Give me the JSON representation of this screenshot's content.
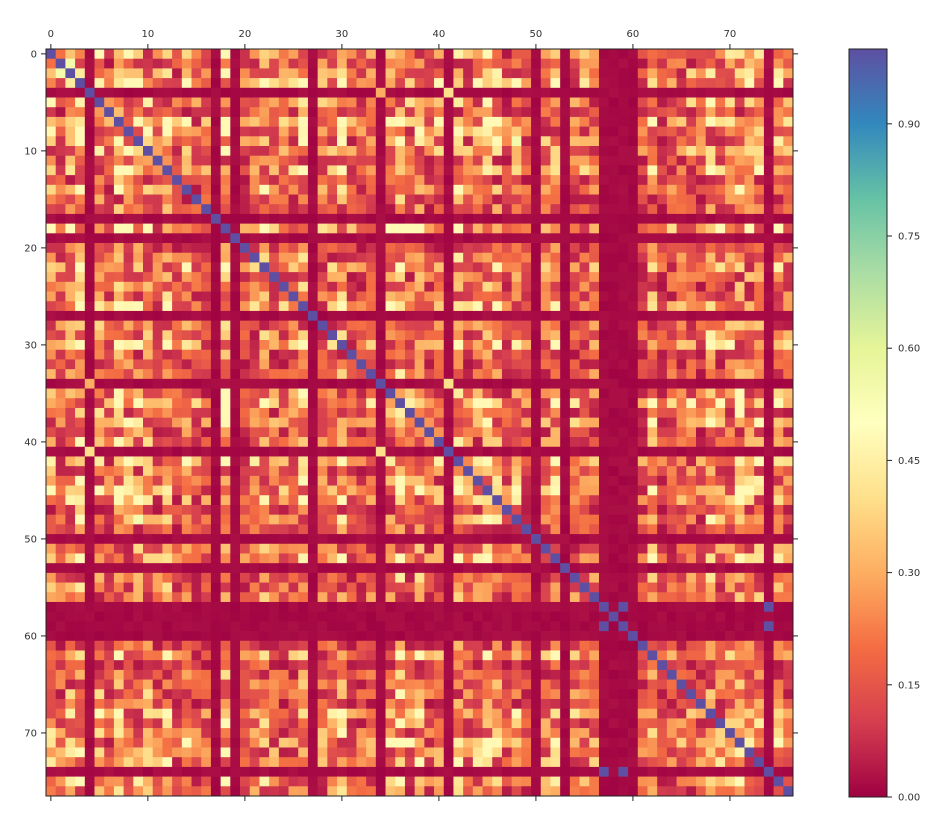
{
  "chart_data": {
    "type": "heatmap",
    "title": "",
    "xlabel": "",
    "ylabel": "",
    "n": 77,
    "x_ticks": [
      0,
      10,
      20,
      30,
      40,
      50,
      60,
      70
    ],
    "y_ticks": [
      0,
      10,
      20,
      30,
      40,
      50,
      60,
      70
    ],
    "colormap": "Spectral",
    "colorbar": {
      "min": 0.0,
      "max": 1.0,
      "ticks": [
        0.0,
        0.15,
        0.3,
        0.45,
        0.6,
        0.75,
        0.9
      ],
      "tick_labels": [
        "0.00",
        "0.15",
        "0.30",
        "0.45",
        "0.60",
        "0.75",
        "0.90"
      ]
    },
    "diagonal_value": 1.0,
    "near_zero_rows_cols": [
      4,
      17,
      19,
      27,
      34,
      41,
      50,
      53,
      57,
      58,
      59,
      60,
      74
    ],
    "high_value_pairs": [
      {
        "i": 57,
        "j": 59,
        "value": 1.0
      },
      {
        "i": 57,
        "j": 74,
        "value": 1.0
      },
      {
        "i": 59,
        "j": 74,
        "value": 1.0
      },
      {
        "i": 4,
        "j": 34,
        "value": 0.3
      },
      {
        "i": 4,
        "j": 41,
        "value": 0.4
      },
      {
        "i": 34,
        "j": 41,
        "value": 0.4
      },
      {
        "i": 1,
        "j": 2,
        "value": 0.55
      },
      {
        "i": 36,
        "j": 37,
        "value": 0.45
      },
      {
        "i": 44,
        "j": 73,
        "value": 0.45
      },
      {
        "i": 9,
        "j": 48,
        "value": 0.55
      }
    ],
    "typical_value_range": [
      0.05,
      0.45
    ]
  }
}
